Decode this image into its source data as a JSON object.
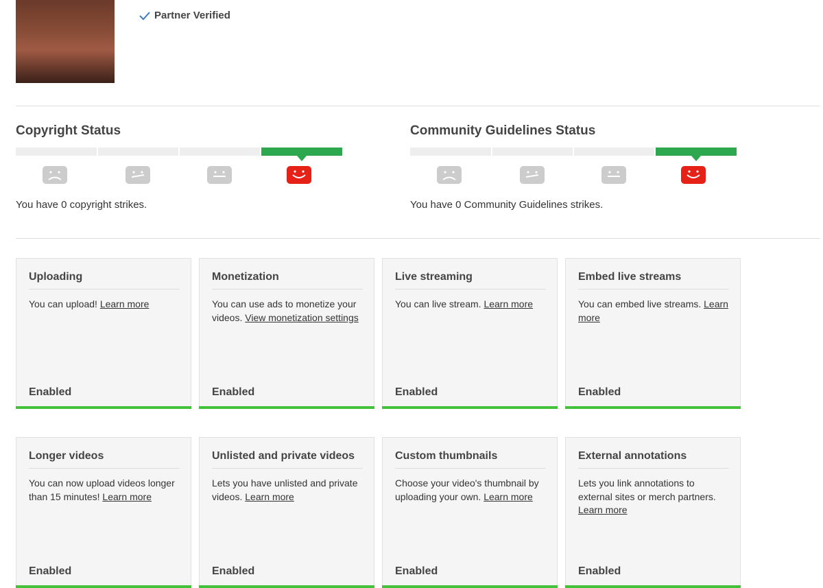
{
  "profile": {
    "verified": "Partner Verified"
  },
  "copyright": {
    "title": "Copyright Status",
    "text": "You have 0 copyright strikes."
  },
  "community": {
    "title": "Community Guidelines Status",
    "text": "You have 0 Community Guidelines strikes."
  },
  "features": [
    {
      "title": "Uploading",
      "text": "You can upload!",
      "link": "Learn more",
      "status": "Enabled"
    },
    {
      "title": "Monetization",
      "text": "You can use ads to monetize your videos.",
      "link": "View monetization settings",
      "status": "Enabled"
    },
    {
      "title": "Live streaming",
      "text": "You can live stream.",
      "link": "Learn more",
      "status": "Enabled"
    },
    {
      "title": "Embed live streams",
      "text": "You can embed live streams.",
      "link": "Learn more",
      "status": "Enabled"
    },
    {
      "title": "Longer videos",
      "text": "You can now upload videos longer than 15 minutes!",
      "link": "Learn more",
      "status": "Enabled"
    },
    {
      "title": "Unlisted and private videos",
      "text": "Lets you have unlisted and private videos.",
      "link": "Learn more",
      "status": "Enabled"
    },
    {
      "title": "Custom thumbnails",
      "text": "Choose your video's thumbnail by uploading your own.",
      "link": "Learn more",
      "status": "Enabled"
    },
    {
      "title": "External annotations",
      "text": "Lets you link annotations to external sites or merch partners.",
      "link": "Learn more",
      "status": "Enabled"
    }
  ]
}
